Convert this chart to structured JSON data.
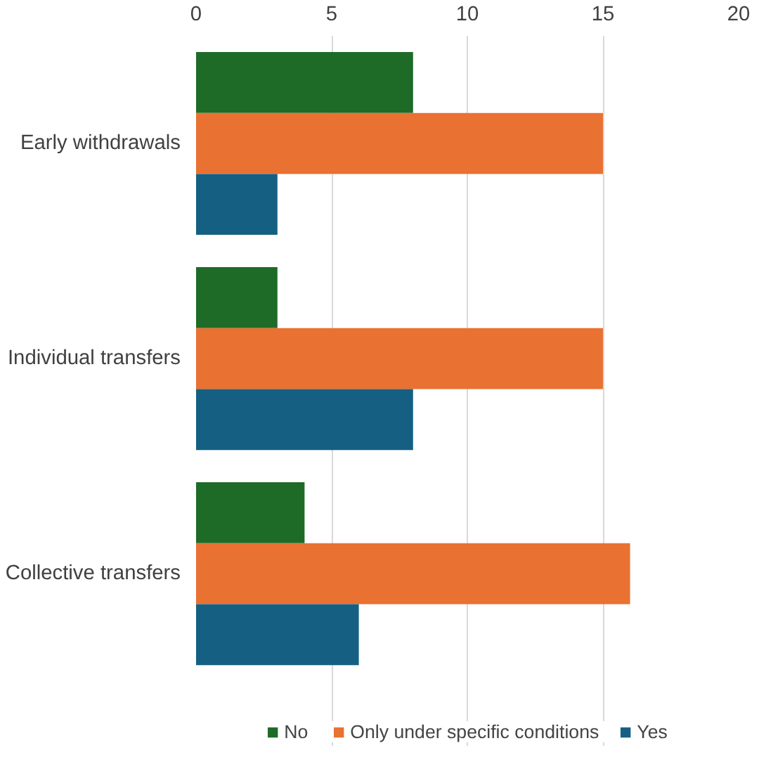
{
  "chart_data": {
    "type": "bar",
    "orientation": "horizontal",
    "categories": [
      "Early withdrawals",
      "Individual transfers",
      "Collective transfers"
    ],
    "series": [
      {
        "name": "No",
        "color": "#1e6b27",
        "values": [
          8,
          3,
          4
        ]
      },
      {
        "name": "Only under specific conditions",
        "color": "#e97132",
        "values": [
          15,
          15,
          16
        ]
      },
      {
        "name": "Yes",
        "color": "#156082",
        "values": [
          3,
          8,
          6
        ]
      }
    ],
    "xlim": [
      0,
      20
    ],
    "xticks": [
      0,
      5,
      10,
      15,
      20
    ],
    "grid": "x",
    "legend": "bottom"
  }
}
